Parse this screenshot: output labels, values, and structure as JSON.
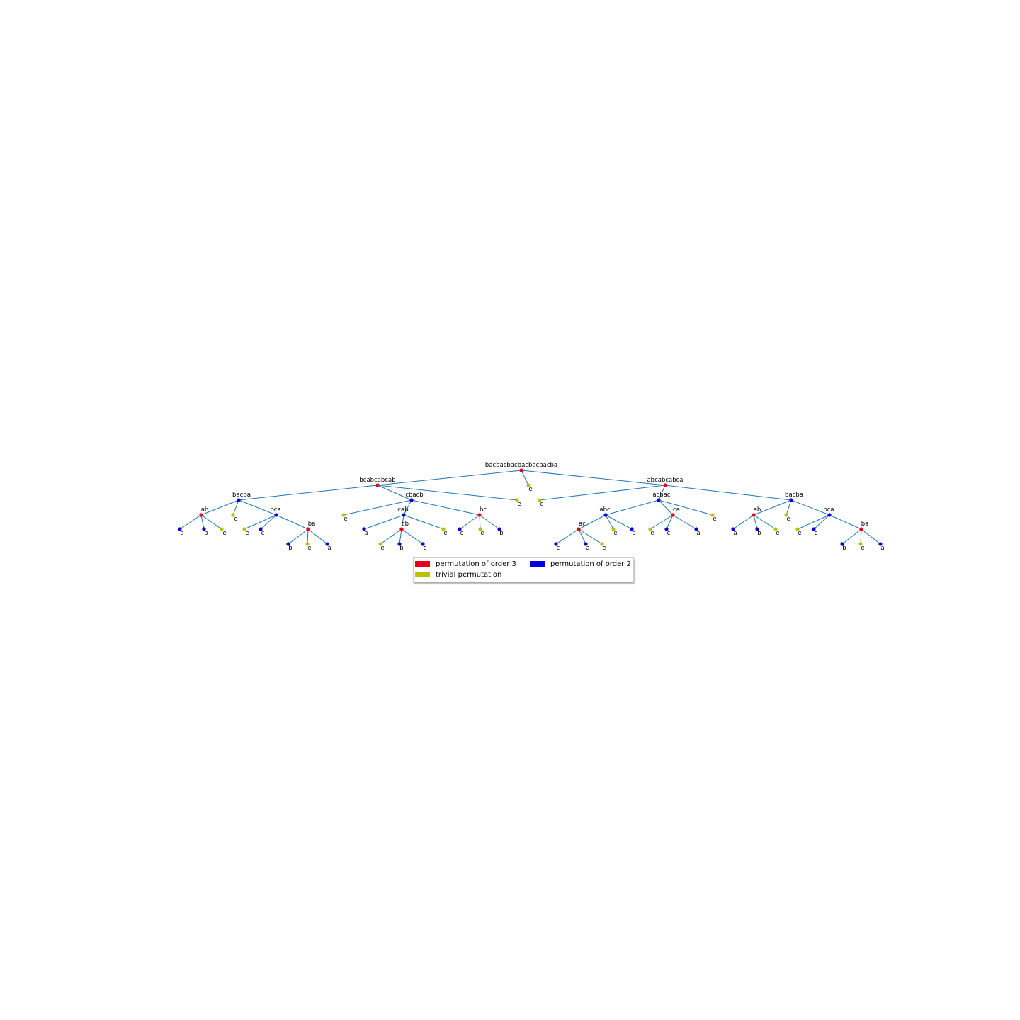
{
  "diagram": {
    "type": "tree",
    "colors": {
      "edge": "#1f77b4",
      "order3": "#e6001a",
      "order2": "#0000e6",
      "trivial": "#bfbf00"
    },
    "root": {
      "label": "bacbacbacbacbacbacba",
      "kind": "order3",
      "children": [
        {
          "label": "bcabcabcab",
          "kind": "order3",
          "children": [
            {
              "label": "bacba",
              "kind": "order2",
              "children": [
                {
                  "label": "ab",
                  "kind": "order3",
                  "children": [
                    {
                      "label": "a",
                      "kind": "order2",
                      "children": []
                    },
                    {
                      "label": "b",
                      "kind": "order2",
                      "children": []
                    },
                    {
                      "label": "e",
                      "kind": "trivial",
                      "children": []
                    }
                  ]
                },
                {
                  "label": "e",
                  "kind": "trivial",
                  "children": []
                },
                {
                  "label": "bca",
                  "kind": "order2",
                  "children": [
                    {
                      "label": "e",
                      "kind": "trivial",
                      "children": []
                    },
                    {
                      "label": "c",
                      "kind": "order2",
                      "children": []
                    },
                    {
                      "label": "ba",
                      "kind": "order3",
                      "children": [
                        {
                          "label": "b",
                          "kind": "order2",
                          "children": []
                        },
                        {
                          "label": "e",
                          "kind": "trivial",
                          "children": []
                        },
                        {
                          "label": "a",
                          "kind": "order2",
                          "children": []
                        }
                      ]
                    }
                  ]
                }
              ]
            },
            {
              "label": "cbacb",
              "kind": "order2",
              "children": [
                {
                  "label": "e",
                  "kind": "trivial",
                  "children": []
                },
                {
                  "label": "cab",
                  "kind": "order2",
                  "children": [
                    {
                      "label": "a",
                      "kind": "order2",
                      "children": []
                    },
                    {
                      "label": "cb",
                      "kind": "order3",
                      "children": [
                        {
                          "label": "e",
                          "kind": "trivial",
                          "children": []
                        },
                        {
                          "label": "b",
                          "kind": "order2",
                          "children": []
                        },
                        {
                          "label": "c",
                          "kind": "order2",
                          "children": []
                        }
                      ]
                    },
                    {
                      "label": "e",
                      "kind": "trivial",
                      "children": []
                    }
                  ]
                },
                {
                  "label": "bc",
                  "kind": "order3",
                  "children": [
                    {
                      "label": "c",
                      "kind": "order2",
                      "children": []
                    },
                    {
                      "label": "e",
                      "kind": "trivial",
                      "children": []
                    },
                    {
                      "label": "b",
                      "kind": "order2",
                      "children": []
                    }
                  ]
                }
              ]
            },
            {
              "label": "e",
              "kind": "trivial",
              "children": []
            }
          ]
        },
        {
          "label": "e",
          "kind": "trivial",
          "children": []
        },
        {
          "label": "abcabcabca",
          "kind": "order3",
          "children": [
            {
              "label": "e",
              "kind": "trivial",
              "children": []
            },
            {
              "label": "acbac",
              "kind": "order2",
              "children": [
                {
                  "label": "abc",
                  "kind": "order2",
                  "children": [
                    {
                      "label": "ac",
                      "kind": "order3",
                      "children": [
                        {
                          "label": "c",
                          "kind": "order2",
                          "children": []
                        },
                        {
                          "label": "a",
                          "kind": "order2",
                          "children": []
                        },
                        {
                          "label": "e",
                          "kind": "trivial",
                          "children": []
                        }
                      ]
                    },
                    {
                      "label": "e",
                      "kind": "trivial",
                      "children": []
                    },
                    {
                      "label": "b",
                      "kind": "order2",
                      "children": []
                    }
                  ]
                },
                {
                  "label": "ca",
                  "kind": "order3",
                  "children": [
                    {
                      "label": "e",
                      "kind": "trivial",
                      "children": []
                    },
                    {
                      "label": "c",
                      "kind": "order2",
                      "children": []
                    },
                    {
                      "label": "a",
                      "kind": "order2",
                      "children": []
                    }
                  ]
                },
                {
                  "label": "e",
                  "kind": "trivial",
                  "children": []
                }
              ]
            },
            {
              "label": "bacba",
              "kind": "order2",
              "children": [
                {
                  "label": "ab",
                  "kind": "order3",
                  "children": [
                    {
                      "label": "a",
                      "kind": "order2",
                      "children": []
                    },
                    {
                      "label": "b",
                      "kind": "order2",
                      "children": []
                    },
                    {
                      "label": "e",
                      "kind": "trivial",
                      "children": []
                    }
                  ]
                },
                {
                  "label": "e",
                  "kind": "trivial",
                  "children": []
                },
                {
                  "label": "bca",
                  "kind": "order2",
                  "children": [
                    {
                      "label": "e",
                      "kind": "trivial",
                      "children": []
                    },
                    {
                      "label": "c",
                      "kind": "order2",
                      "children": []
                    },
                    {
                      "label": "ba",
                      "kind": "order3",
                      "children": [
                        {
                          "label": "b",
                          "kind": "order2",
                          "children": []
                        },
                        {
                          "label": "e",
                          "kind": "trivial",
                          "children": []
                        },
                        {
                          "label": "a",
                          "kind": "order2",
                          "children": []
                        }
                      ]
                    }
                  ]
                }
              ]
            }
          ]
        }
      ]
    },
    "legend": {
      "order3": "permutation of order 3",
      "order2": "permutation of order 2",
      "trivial": "trivial permutation"
    }
  }
}
